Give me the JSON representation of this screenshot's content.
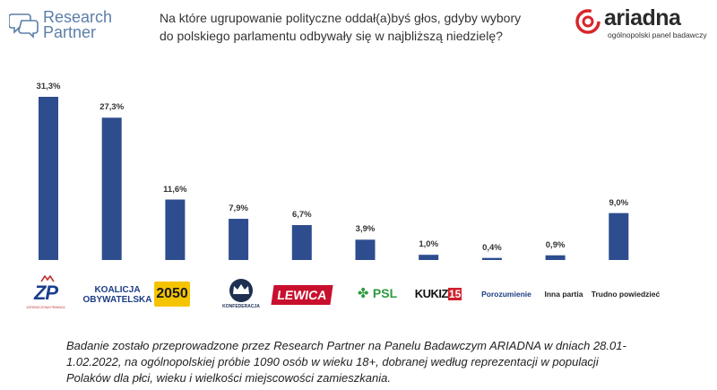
{
  "header": {
    "rp_logo_line1": "Research",
    "rp_logo_line2": "Partner",
    "question": "Na które ugrupowanie polityczne oddał(a)byś głos, gdyby wybory do polskiego parlamentu odbywały się w najbliższą niedzielę?",
    "ariadna_logo_word": "ariadna",
    "ariadna_logo_sub": "ogólnopolski panel badawczy"
  },
  "chart_data": {
    "type": "bar",
    "categories": [
      "ZP",
      "Koalicja Obywatelska",
      "2050",
      "Konfederacja",
      "Lewica",
      "PSL",
      "Kukiz'15",
      "Porozumienie",
      "Inna partia",
      "Trudno powiedzieć"
    ],
    "values": [
      31.3,
      27.3,
      11.6,
      7.9,
      6.7,
      3.9,
      1.0,
      0.4,
      0.9,
      9.0
    ],
    "value_labels": [
      "31,3%",
      "27,3%",
      "11,6%",
      "7,9%",
      "6,7%",
      "3,9%",
      "1,0%",
      "0,4%",
      "0,9%",
      "9,0%"
    ],
    "ylim": [
      0,
      31.3
    ],
    "grid": false,
    "bar_color": "#2e4d8f"
  },
  "party_logos": {
    "zp_abbr": "ZP",
    "zp_sub": "ZJEDNOCZONA PRAWICA",
    "ko_line1": "KOALICJA",
    "ko_line2": "OBYWATELSKA",
    "p2050": "2050",
    "konf": "KONFEDERACJA",
    "lewica": "LEWICA",
    "psl": "PSL",
    "kukiz_a": "KUKIZ",
    "kukiz_b": "15",
    "porozumienie": "Porozumienie",
    "inna": "Inna partia",
    "trudno": "Trudno powiedzieć"
  },
  "footnote": "Badanie zostało przeprowadzone przez Research Partner na Panelu Badawczym ARIADNA w dniach 28.01-1.02.2022, na ogólnopolskiej próbie 1090 osób w wieku 18+, dobranej według reprezentacji w populacji Polaków dla płci, wieku i wielkości miejscowości zamieszkania."
}
